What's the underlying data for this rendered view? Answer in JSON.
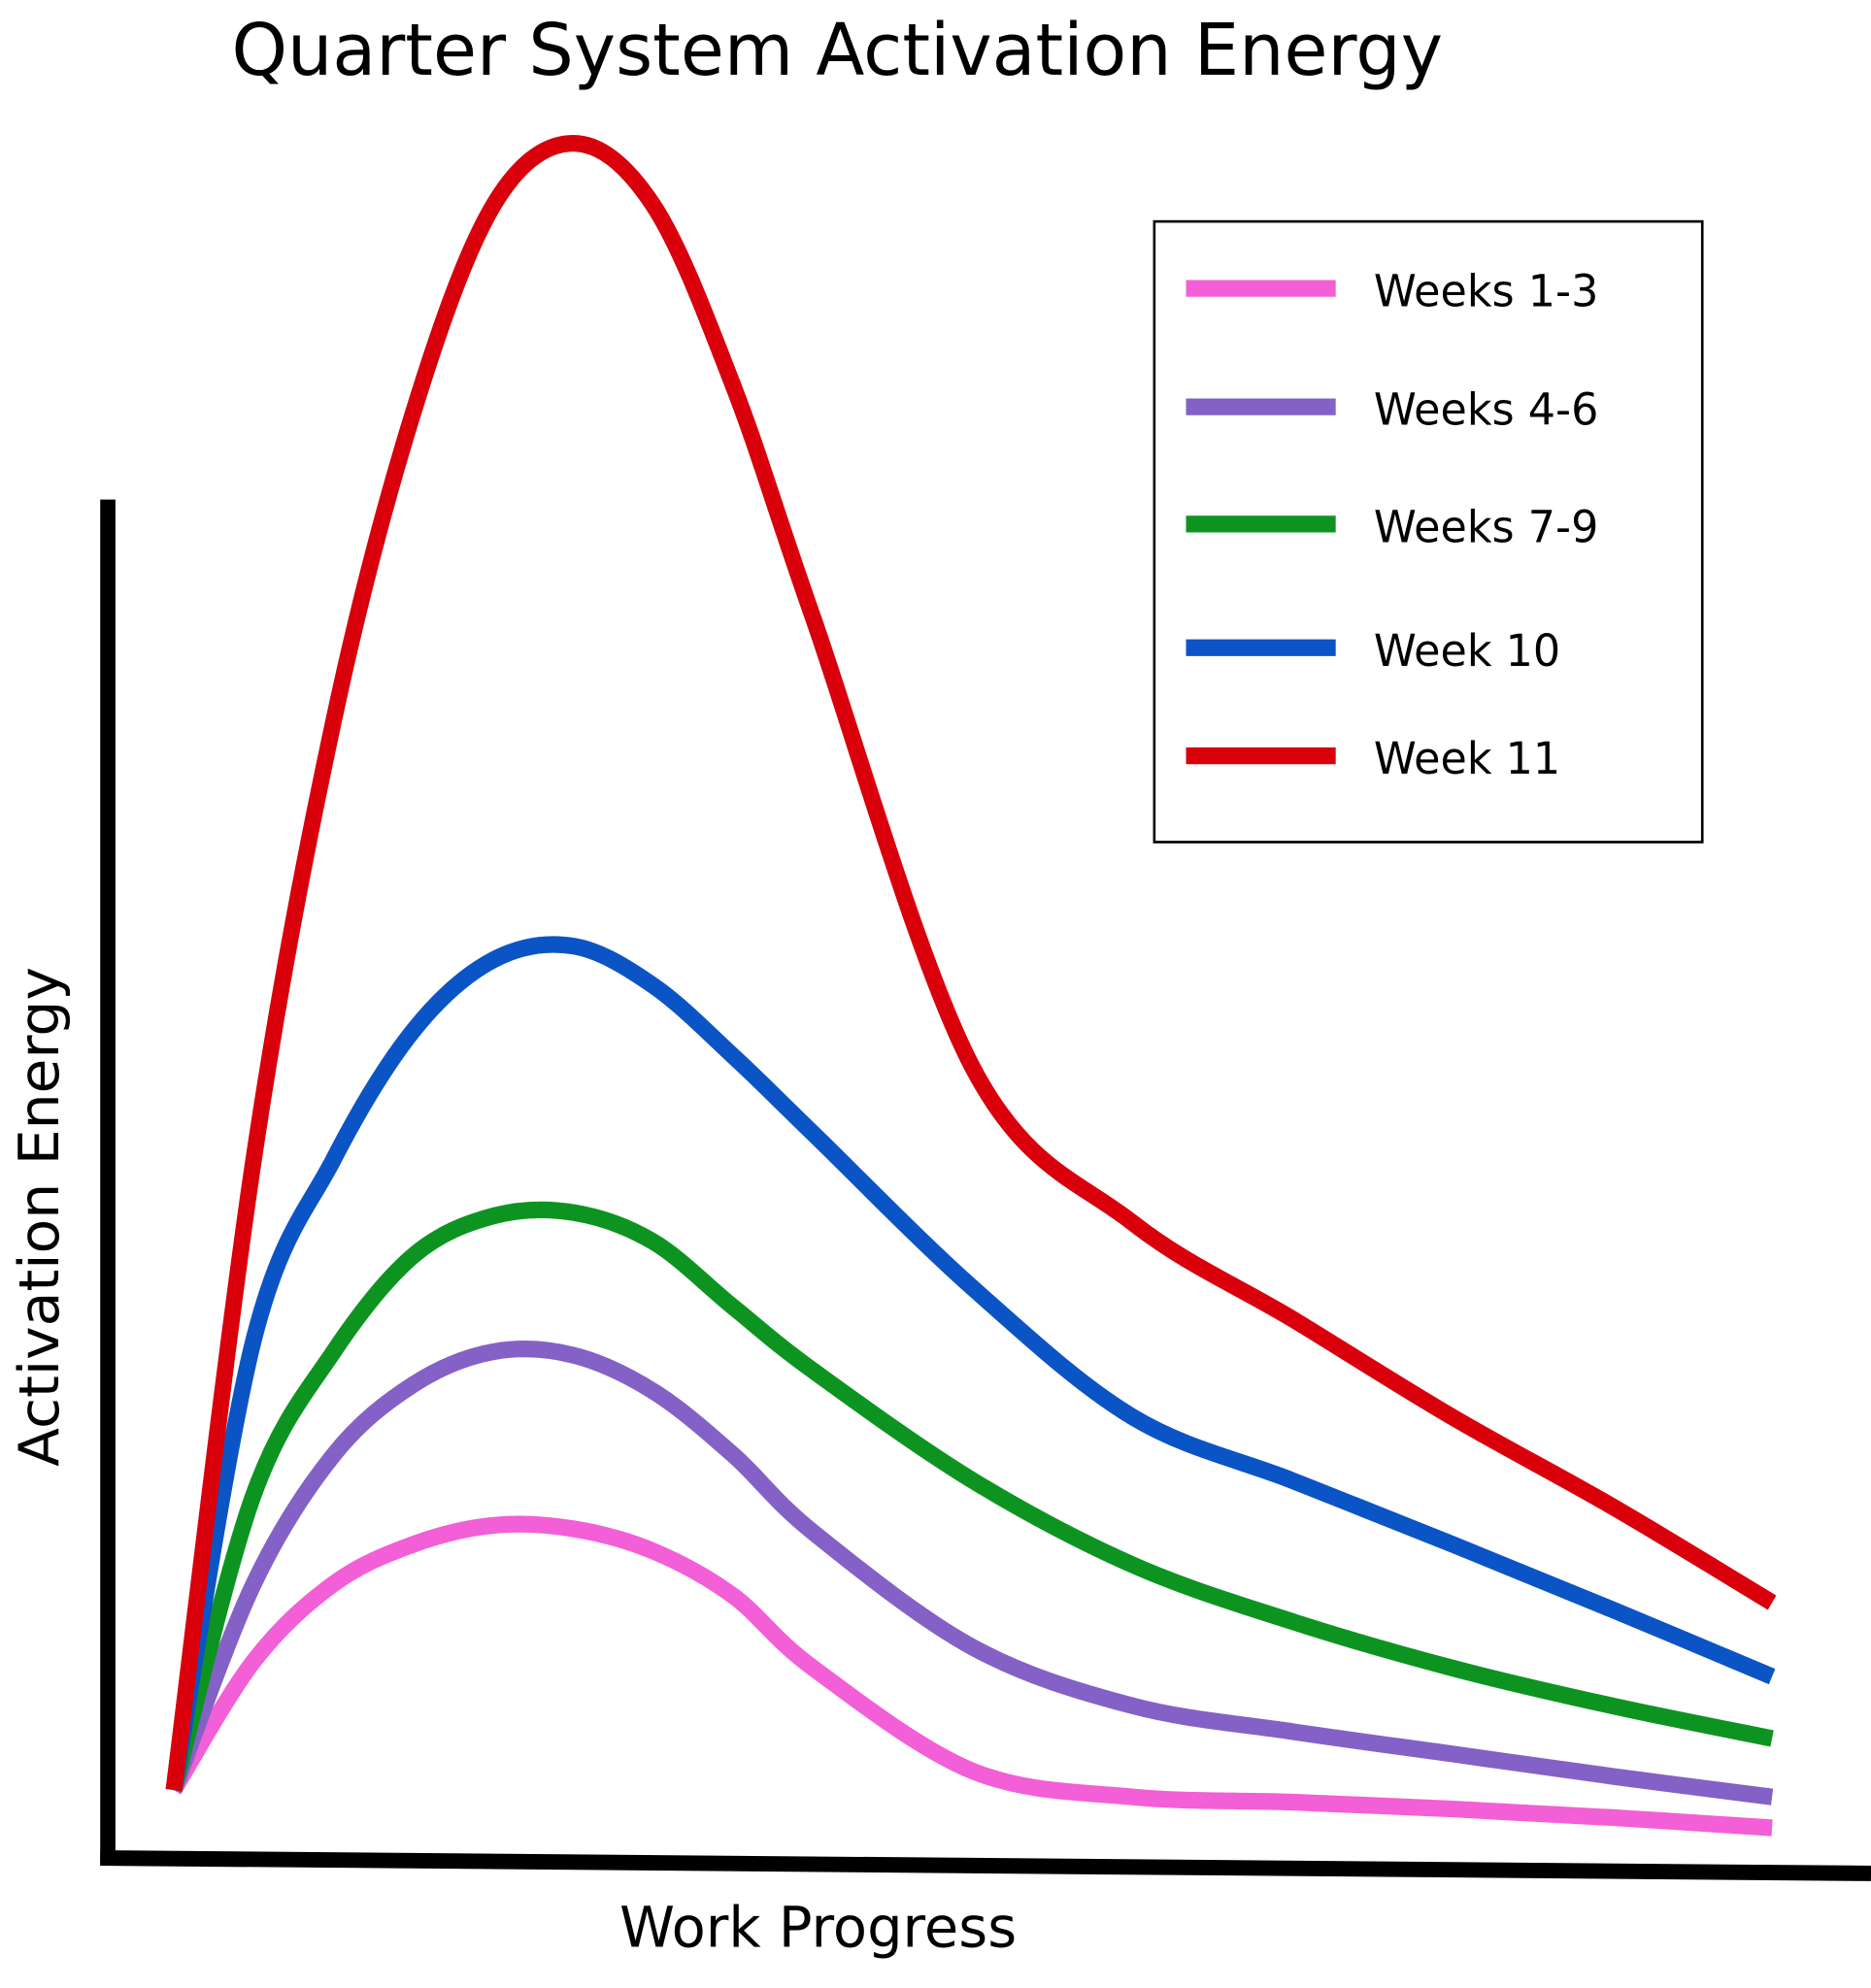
{
  "chart_data": {
    "type": "line",
    "title": "Quarter System Activation Energy",
    "x_label": "Work Progress",
    "y_label": "Activation Energy",
    "x": [
      0,
      5,
      10,
      15,
      20,
      25,
      30,
      35,
      40,
      50,
      60,
      70,
      80,
      90,
      100
    ],
    "xlim": [
      0,
      100
    ],
    "ylim": [
      0,
      100
    ],
    "legend": "top-right",
    "series": [
      {
        "name": "Weeks 1-3",
        "color": "#f25fd6",
        "values": [
          4.1,
          11.6,
          16.1,
          18.4,
          19.5,
          19.3,
          18.0,
          15.4,
          11.2,
          5.2,
          3.7,
          3.4,
          3.0,
          2.5,
          1.9
        ]
      },
      {
        "name": "Weeks 4-6",
        "color": "#8461c6",
        "values": [
          4.1,
          16.1,
          23.6,
          27.7,
          29.6,
          29.4,
          27.3,
          23.6,
          19.1,
          12.4,
          9.0,
          7.5,
          6.2,
          4.9,
          3.7
        ]
      },
      {
        "name": "Weeks 7-9",
        "color": "#0d9420",
        "values": [
          4.1,
          21.3,
          29.6,
          35.2,
          37.5,
          37.7,
          36.0,
          32.2,
          28.5,
          22.1,
          17.2,
          13.9,
          11.2,
          9.0,
          7.1
        ]
      },
      {
        "name": "Week 10",
        "color": "#0b54c6",
        "values": [
          4.1,
          30.3,
          40.8,
          48.3,
          52.4,
          53.2,
          50.9,
          46.8,
          42.3,
          33.3,
          25.8,
          22.1,
          18.4,
          14.6,
          10.7
        ]
      },
      {
        "name": "Week 11",
        "color": "#d9000c",
        "values": [
          4.1,
          40.8,
          66.3,
          84.3,
          96.3,
          99.9,
          96.3,
          85.8,
          72.3,
          46.1,
          37.1,
          31.5,
          25.8,
          20.6,
          15.0
        ]
      }
    ]
  }
}
